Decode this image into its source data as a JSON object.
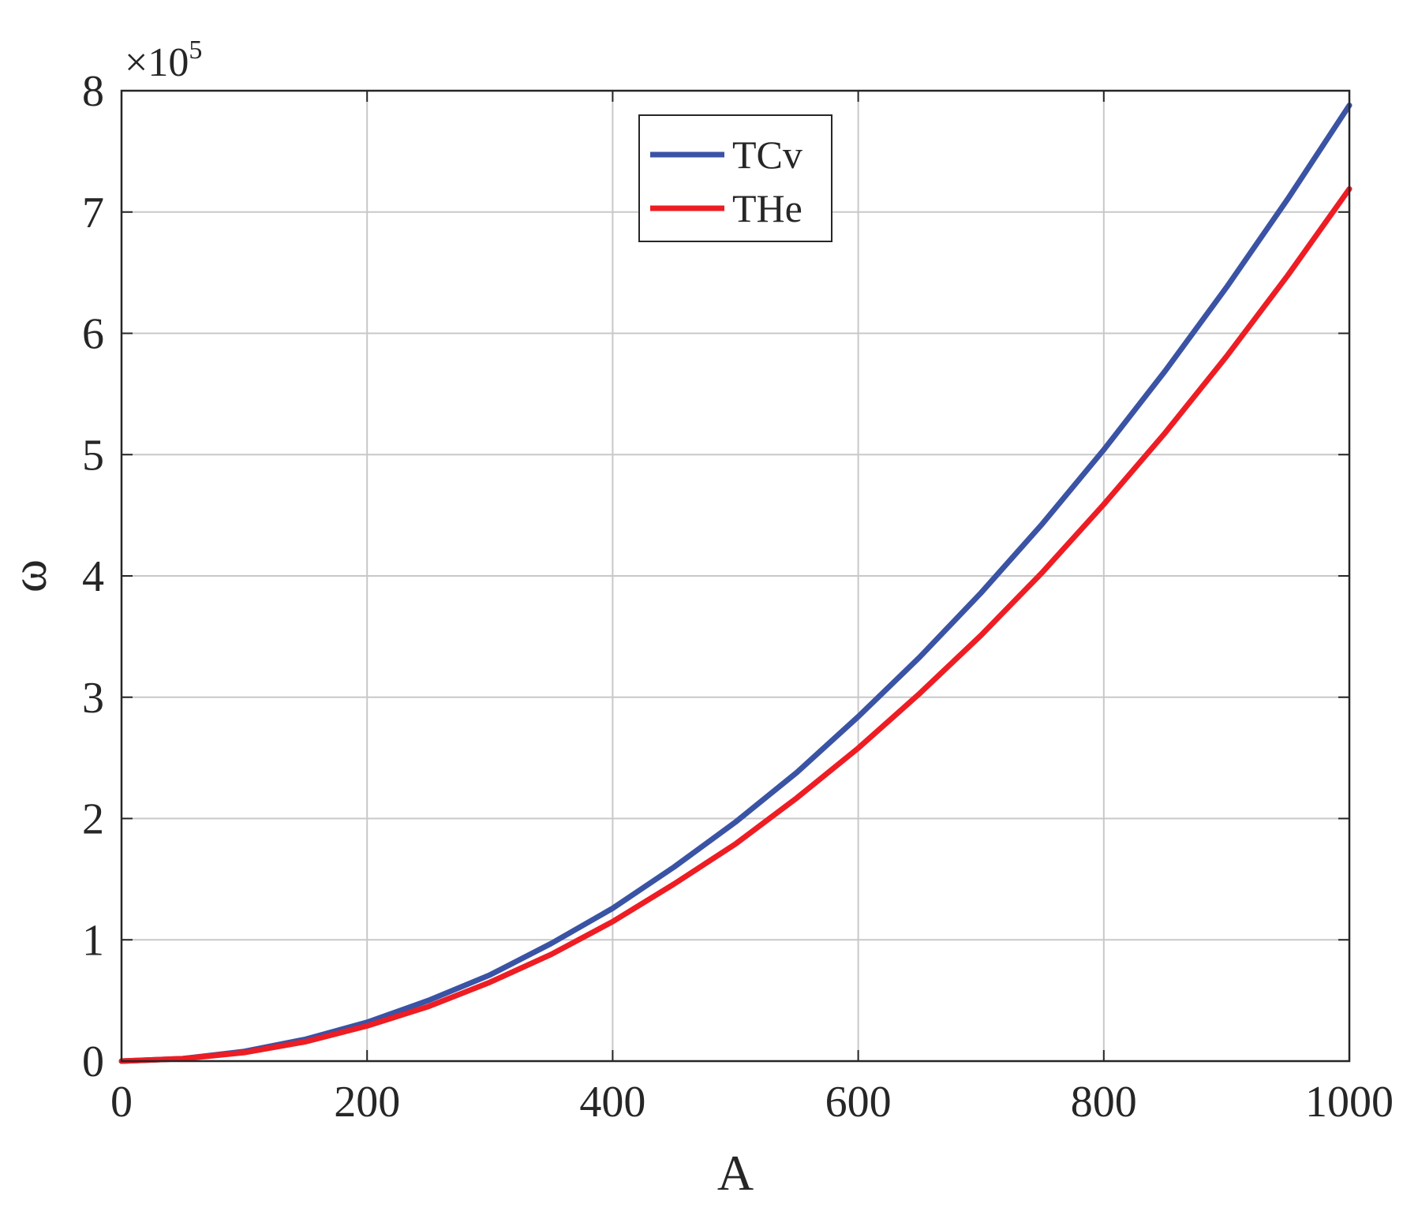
{
  "chart_data": {
    "type": "line",
    "title": "",
    "xlabel": "A",
    "ylabel": "ω",
    "xlim": [
      0,
      1000
    ],
    "ylim": [
      0,
      8
    ],
    "y_multiplier_label": "×10",
    "y_multiplier_exponent": "5",
    "xticks": [
      0,
      200,
      400,
      600,
      800,
      1000
    ],
    "xtick_labels": [
      "0",
      "200",
      "400",
      "600",
      "800",
      "1000"
    ],
    "yticks": [
      0,
      1,
      2,
      3,
      4,
      5,
      6,
      7,
      8
    ],
    "ytick_labels": [
      "0",
      "1",
      "2",
      "3",
      "4",
      "5",
      "6",
      "7",
      "8"
    ],
    "grid": true,
    "legend_position": "top-center",
    "x": [
      0,
      50,
      100,
      150,
      200,
      250,
      300,
      350,
      400,
      450,
      500,
      550,
      600,
      650,
      700,
      750,
      800,
      850,
      900,
      950,
      1000
    ],
    "series": [
      {
        "name": "TCv",
        "color": "#3a53a4",
        "values": [
          0,
          0.02,
          0.08,
          0.18,
          0.32,
          0.5,
          0.71,
          0.97,
          1.26,
          1.6,
          1.97,
          2.38,
          2.84,
          3.33,
          3.86,
          4.43,
          5.04,
          5.69,
          6.38,
          7.11,
          7.88
        ]
      },
      {
        "name": "THe",
        "color": "#ee1d23",
        "values": [
          0,
          0.02,
          0.07,
          0.16,
          0.29,
          0.45,
          0.65,
          0.88,
          1.15,
          1.46,
          1.79,
          2.17,
          2.58,
          3.03,
          3.51,
          4.03,
          4.59,
          5.18,
          5.81,
          6.48,
          7.19
        ]
      }
    ]
  }
}
